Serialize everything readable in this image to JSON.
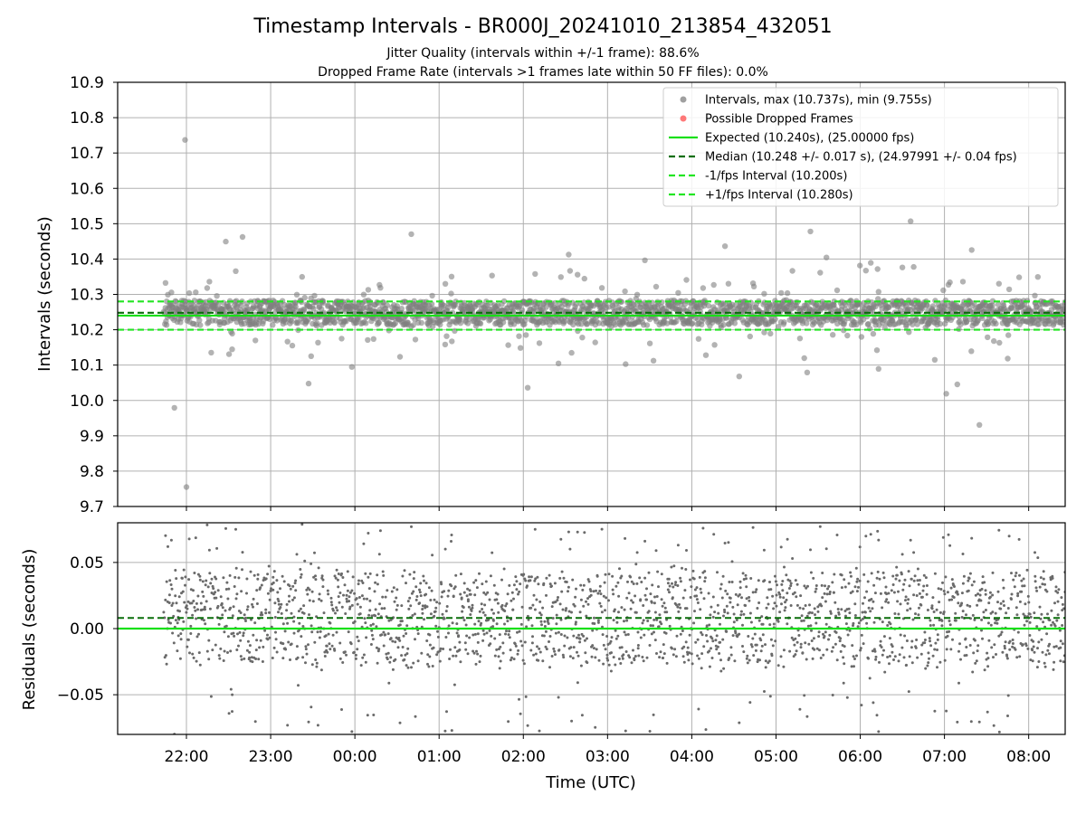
{
  "figure": {
    "title": "Timestamp Intervals - BR000J_20241010_213854_432051",
    "subtitle_1": "Jitter Quality (intervals within +/-1 frame): 88.6%",
    "subtitle_2": "Dropped Frame Rate (intervals >1 frames late within 50 FF files): 0.0%",
    "xlabel": "Time (UTC)"
  },
  "colors": {
    "points": "#808080",
    "dropped": "#ff4c4c",
    "expected": "#18e018",
    "median": "#0a6e0a",
    "interval_band": "#22e622",
    "grid": "#b0b0b0"
  },
  "chart_data": [
    {
      "type": "scatter",
      "id": "intervals",
      "ylabel": "Intervals (seconds)",
      "ylim": [
        9.7,
        10.9
      ],
      "yticks": [
        "9.7",
        "9.8",
        "9.9",
        "10.0",
        "10.1",
        "10.2",
        "10.3",
        "10.4",
        "10.5",
        "10.6",
        "10.7",
        "10.8",
        "10.9"
      ],
      "xlim": [
        "21:11",
        "08:26"
      ],
      "xticks": [
        "22:00",
        "23:00",
        "00:00",
        "01:00",
        "02:00",
        "03:00",
        "04:00",
        "05:00",
        "06:00",
        "07:00",
        "08:00"
      ],
      "grid": true,
      "legend_position": "top-right",
      "series": [
        {
          "name": "Intervals, max (10.737s), min (9.755s)",
          "kind": "points",
          "x_range": [
            "21:44",
            "08:26"
          ],
          "median": 10.248,
          "spread": 0.017,
          "max": 10.737,
          "min": 9.755
        },
        {
          "name": "Possible Dropped Frames",
          "kind": "points",
          "count": 0
        }
      ],
      "reference_lines": [
        {
          "name": "Expected (10.240s), (25.00000 fps)",
          "y": 10.24,
          "style": "solid"
        },
        {
          "name": "Median (10.248 +/- 0.017 s), (24.97991 +/- 0.04 fps)",
          "y": 10.248,
          "style": "dashed"
        },
        {
          "name": "-1/fps Interval (10.200s)",
          "y": 10.2,
          "style": "dashed"
        },
        {
          "name": "+1/fps Interval (10.280s)",
          "y": 10.28,
          "style": "dashed"
        }
      ]
    },
    {
      "type": "scatter",
      "id": "residuals",
      "ylabel": "Residuals (seconds)",
      "ylim": [
        -0.08,
        0.08
      ],
      "yticks": [
        "−0.05",
        "0.00",
        "0.05"
      ],
      "ytick_values": [
        -0.05,
        0,
        0.05
      ],
      "xlabel": "Time (UTC)",
      "grid": true,
      "reference_lines": [
        {
          "y": 0.0,
          "style": "solid"
        },
        {
          "y": 0.008,
          "style": "dashed"
        }
      ]
    }
  ]
}
